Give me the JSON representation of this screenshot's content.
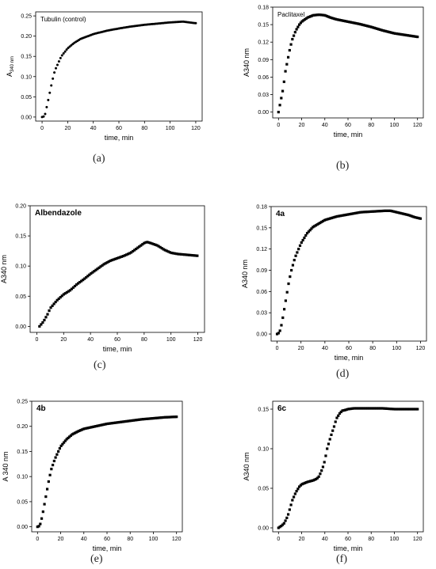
{
  "captions": [
    "(a)",
    "(b)",
    "(c)",
    "(d)",
    "(e)",
    "(f)"
  ],
  "chart_data": [
    {
      "type": "scatter",
      "title": "Tubulin (control)",
      "title_bold": false,
      "xlabel": "time, min",
      "ylabel_main": "A",
      "ylabel_sub": "340 nm",
      "xlim": [
        -5,
        125
      ],
      "ylim": [
        -0.01,
        0.26
      ],
      "xticks": [
        0,
        20,
        40,
        60,
        80,
        100,
        120
      ],
      "yticks": [
        "0.00",
        "0.05",
        "0.10",
        "0.15",
        "0.20",
        "0.25"
      ],
      "color": "#000000",
      "marker": "circle",
      "series": [
        {
          "x": [
            0,
            2,
            4,
            6,
            8,
            10,
            15,
            20,
            25,
            30,
            40,
            50,
            60,
            70,
            80,
            90,
            100,
            110,
            120
          ],
          "y": [
            0,
            0.002,
            0.03,
            0.06,
            0.09,
            0.115,
            0.15,
            0.17,
            0.183,
            0.193,
            0.205,
            0.213,
            0.219,
            0.224,
            0.228,
            0.231,
            0.234,
            0.236,
            0.232
          ]
        }
      ]
    },
    {
      "type": "scatter",
      "title": "Paclitaxel",
      "title_bold": false,
      "xlabel": "time, min",
      "ylabel_main": "A340 nm",
      "ylabel_sub": "",
      "xlim": [
        -5,
        125
      ],
      "ylim": [
        -0.01,
        0.18
      ],
      "xticks": [
        0,
        20,
        40,
        60,
        80,
        100,
        120
      ],
      "yticks": [
        "0.00",
        "0.03",
        "0.06",
        "0.09",
        "0.12",
        "0.15",
        "0.18"
      ],
      "color": "#000000",
      "marker": "square",
      "series": [
        {
          "x": [
            0,
            2,
            4,
            6,
            8,
            10,
            12,
            15,
            18,
            20,
            25,
            30,
            35,
            40,
            45,
            50,
            60,
            70,
            80,
            90,
            100,
            110,
            120
          ],
          "y": [
            0,
            0.02,
            0.04,
            0.07,
            0.09,
            0.11,
            0.125,
            0.14,
            0.15,
            0.155,
            0.162,
            0.166,
            0.167,
            0.166,
            0.162,
            0.159,
            0.155,
            0.151,
            0.146,
            0.14,
            0.135,
            0.132,
            0.129
          ]
        }
      ]
    },
    {
      "type": "scatter",
      "title": "Albendazole",
      "title_bold": true,
      "xlabel": "time, min",
      "ylabel_main": "A340 nm",
      "ylabel_sub": "",
      "xlim": [
        -5,
        125
      ],
      "ylim": [
        -0.01,
        0.2
      ],
      "xticks": [
        0,
        20,
        40,
        60,
        80,
        100,
        120
      ],
      "yticks": [
        "0.00",
        "0.05",
        "0.10",
        "0.15",
        "0.20"
      ],
      "color": "#000000",
      "marker": "square",
      "series": [
        {
          "x": [
            2,
            5,
            8,
            10,
            15,
            20,
            25,
            30,
            35,
            40,
            45,
            50,
            55,
            60,
            65,
            70,
            75,
            80,
            82,
            85,
            90,
            95,
            100,
            105,
            110,
            115,
            120
          ],
          "y": [
            0,
            0.008,
            0.02,
            0.03,
            0.043,
            0.053,
            0.06,
            0.07,
            0.078,
            0.087,
            0.095,
            0.103,
            0.109,
            0.113,
            0.117,
            0.122,
            0.13,
            0.138,
            0.14,
            0.138,
            0.134,
            0.127,
            0.122,
            0.12,
            0.119,
            0.118,
            0.117
          ]
        }
      ]
    },
    {
      "type": "scatter",
      "title": "4a",
      "title_bold": true,
      "xlabel": "time, min",
      "ylabel_main": "A340 nm",
      "ylabel_sub": "",
      "xlim": [
        -5,
        125
      ],
      "ylim": [
        -0.01,
        0.18
      ],
      "xticks": [
        0,
        20,
        40,
        60,
        80,
        100,
        120
      ],
      "yticks": [
        "0.00",
        "0.03",
        "0.06",
        "0.09",
        "0.12",
        "0.15",
        "0.18"
      ],
      "color": "#000000",
      "marker": "square",
      "series": [
        {
          "x": [
            0,
            2,
            4,
            6,
            8,
            10,
            12,
            15,
            18,
            20,
            25,
            30,
            35,
            40,
            50,
            60,
            70,
            80,
            90,
            95,
            100,
            105,
            110,
            115,
            120
          ],
          "y": [
            0,
            0.002,
            0.015,
            0.035,
            0.055,
            0.075,
            0.09,
            0.108,
            0.12,
            0.128,
            0.142,
            0.151,
            0.156,
            0.161,
            0.166,
            0.169,
            0.172,
            0.173,
            0.174,
            0.174,
            0.172,
            0.17,
            0.168,
            0.165,
            0.163
          ]
        }
      ]
    },
    {
      "type": "scatter",
      "title": "4b",
      "title_bold": true,
      "xlabel": "time, min",
      "ylabel_main": "A 340 nm",
      "ylabel_sub": "",
      "xlim": [
        -5,
        125
      ],
      "ylim": [
        -0.01,
        0.25
      ],
      "xticks": [
        0,
        20,
        40,
        60,
        80,
        100,
        120
      ],
      "yticks": [
        "0.00",
        "0.05",
        "0.10",
        "0.15",
        "0.20",
        "0.25"
      ],
      "color": "#000000",
      "marker": "square",
      "series": [
        {
          "x": [
            0,
            2,
            4,
            6,
            8,
            10,
            12,
            15,
            18,
            20,
            25,
            30,
            35,
            40,
            50,
            60,
            70,
            80,
            90,
            100,
            110,
            120
          ],
          "y": [
            0,
            0.002,
            0.02,
            0.045,
            0.07,
            0.095,
            0.115,
            0.135,
            0.15,
            0.16,
            0.174,
            0.184,
            0.19,
            0.195,
            0.2,
            0.205,
            0.208,
            0.211,
            0.214,
            0.216,
            0.218,
            0.219
          ]
        }
      ]
    },
    {
      "type": "scatter",
      "title": "6c",
      "title_bold": true,
      "xlabel": "time, min",
      "ylabel_main": "A340 nm",
      "ylabel_sub": "",
      "xlim": [
        -5,
        125
      ],
      "ylim": [
        -0.005,
        0.16
      ],
      "xticks": [
        0,
        20,
        40,
        60,
        80,
        100,
        120
      ],
      "yticks": [
        "0.00",
        "0.05",
        "0.10",
        "0.15"
      ],
      "color": "#000000",
      "marker": "square",
      "series": [
        {
          "x": [
            0,
            3,
            5,
            8,
            10,
            12,
            15,
            18,
            20,
            25,
            30,
            33,
            35,
            38,
            40,
            42,
            45,
            48,
            50,
            53,
            55,
            58,
            60,
            65,
            70,
            80,
            90,
            100,
            110,
            120
          ],
          "y": [
            0,
            0.003,
            0.006,
            0.015,
            0.025,
            0.035,
            0.045,
            0.052,
            0.055,
            0.058,
            0.06,
            0.062,
            0.065,
            0.075,
            0.085,
            0.1,
            0.115,
            0.128,
            0.138,
            0.145,
            0.148,
            0.149,
            0.15,
            0.151,
            0.151,
            0.151,
            0.151,
            0.15,
            0.15,
            0.15
          ]
        }
      ]
    }
  ]
}
